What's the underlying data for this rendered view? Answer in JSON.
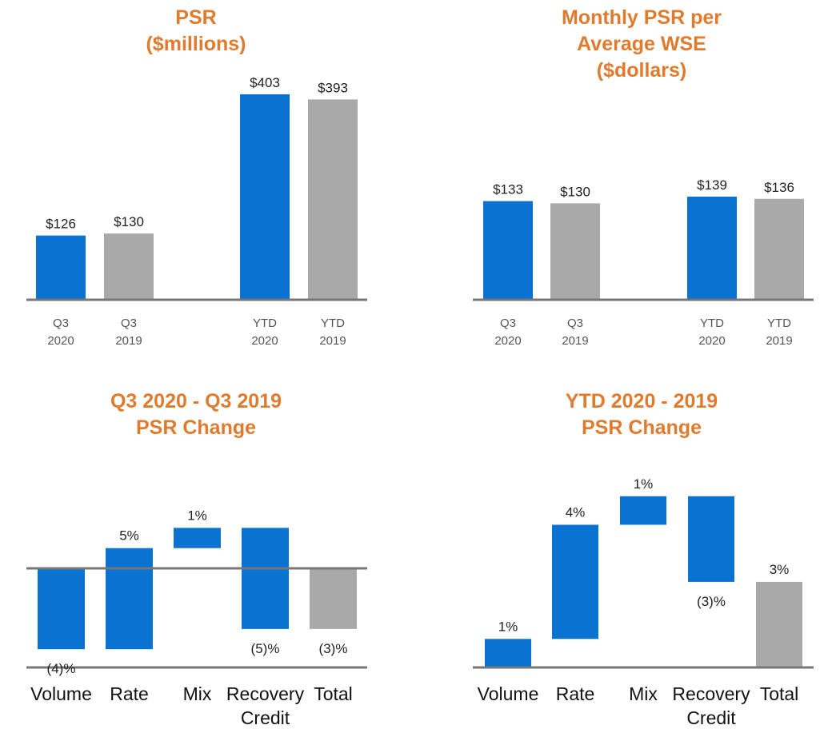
{
  "colors": {
    "title": "#E07B2E",
    "blue": "#0A72D0",
    "gray": "#A9A9A9",
    "axis": "#777777"
  },
  "chart_data": [
    {
      "id": "psr",
      "type": "bar",
      "title_lines": [
        "PSR",
        "($millions)"
      ],
      "categories": [
        [
          "Q3",
          "2020"
        ],
        [
          "Q3",
          "2019"
        ],
        [
          "YTD",
          "2020"
        ],
        [
          "YTD",
          "2019"
        ]
      ],
      "values": [
        126,
        130,
        403,
        393
      ],
      "labels": [
        "$126",
        "$130",
        "$403",
        "$393"
      ],
      "colors": [
        "blue",
        "gray",
        "blue",
        "gray"
      ],
      "ylim": [
        0,
        420
      ]
    },
    {
      "id": "monthly_psr",
      "type": "bar",
      "title_lines": [
        "Monthly PSR per",
        "Average WSE",
        "($dollars)"
      ],
      "categories": [
        [
          "Q3",
          "2020"
        ],
        [
          "Q3",
          "2019"
        ],
        [
          "YTD",
          "2020"
        ],
        [
          "YTD",
          "2019"
        ]
      ],
      "values": [
        133,
        130,
        139,
        136
      ],
      "labels": [
        "$133",
        "$130",
        "$139",
        "$136"
      ],
      "colors": [
        "blue",
        "gray",
        "blue",
        "gray"
      ],
      "ylim": [
        0,
        300
      ]
    },
    {
      "id": "q3_change",
      "type": "waterfall",
      "title_lines": [
        "Q3 2020 - Q3 2019",
        "PSR Change"
      ],
      "categories": [
        [
          "Volume"
        ],
        [
          "Rate"
        ],
        [
          "Mix"
        ],
        [
          "Recovery",
          "Credit"
        ],
        [
          "Total"
        ]
      ],
      "deltas": [
        -4,
        5,
        1,
        -5,
        -3
      ],
      "labels": [
        "(4)%",
        "5%",
        "1%",
        "(5)%",
        "(3)%"
      ],
      "colors": [
        "blue",
        "blue",
        "blue",
        "blue",
        "gray"
      ],
      "is_total": [
        false,
        false,
        false,
        false,
        true
      ],
      "ylim": [
        -5,
        3
      ]
    },
    {
      "id": "ytd_change",
      "type": "waterfall",
      "title_lines": [
        "YTD 2020 - 2019",
        "PSR Change"
      ],
      "categories": [
        [
          "Volume"
        ],
        [
          "Rate"
        ],
        [
          "Mix"
        ],
        [
          "Recovery",
          "Credit"
        ],
        [
          "Total"
        ]
      ],
      "deltas": [
        1,
        4,
        1,
        -3,
        3
      ],
      "labels": [
        "1%",
        "4%",
        "1%",
        "(3)%",
        "3%"
      ],
      "colors": [
        "blue",
        "blue",
        "blue",
        "blue",
        "gray"
      ],
      "is_total": [
        false,
        false,
        false,
        false,
        true
      ],
      "ylim": [
        0,
        8
      ]
    }
  ]
}
